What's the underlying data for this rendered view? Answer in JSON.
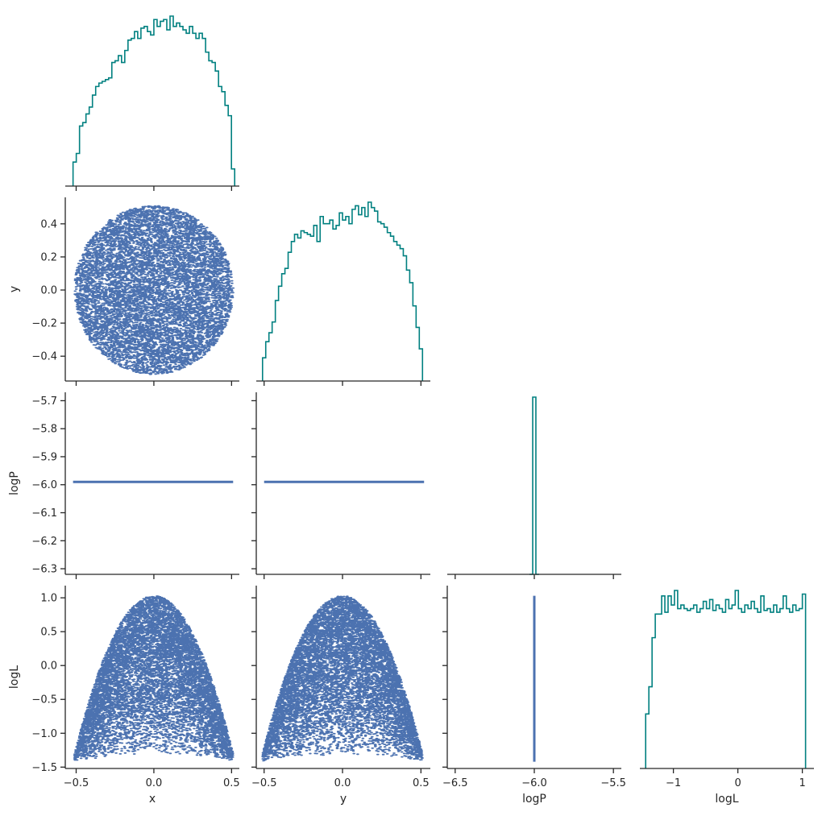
{
  "chart_data": {
    "type": "pairplot",
    "variables": [
      "x",
      "y",
      "logP",
      "logL"
    ],
    "corner": true,
    "colors": {
      "hist": "#008080",
      "scatter": "#4c72b0",
      "axis": "#262626"
    },
    "axes": {
      "x": {
        "label": "x",
        "ticks": [
          -0.5,
          0.0,
          0.5
        ],
        "tick_labels": [
          "-0.5",
          "0.0",
          "0.5"
        ],
        "range": [
          -0.57,
          0.55
        ]
      },
      "y": {
        "label": "y",
        "ticks": [
          -0.4,
          -0.2,
          0.0,
          0.2,
          0.4
        ],
        "tick_labels": [
          "-0.4",
          "-0.2",
          "0.0",
          "0.2",
          "0.4"
        ],
        "range": [
          -0.55,
          0.56
        ]
      },
      "y_col": {
        "label": "y",
        "ticks": [
          -0.5,
          0.0,
          0.5
        ],
        "tick_labels": [
          "-0.5",
          "0.0",
          "0.5"
        ],
        "range": [
          -0.55,
          0.56
        ]
      },
      "logP": {
        "label": "logP",
        "ticks": [
          -5.7,
          -5.8,
          -5.9,
          -6.0,
          -6.1,
          -6.2,
          -6.3
        ],
        "tick_labels": [
          "-5.7",
          "-5.8",
          "-5.9",
          "-6.0",
          "-6.1",
          "-6.2",
          "-6.3"
        ],
        "range": [
          -6.32,
          -5.67
        ]
      },
      "logP_col": {
        "label": "logP",
        "ticks": [
          -6.5,
          -6.0,
          -5.5
        ],
        "tick_labels": [
          "-6.5",
          "-6.0",
          "-5.5"
        ],
        "range": [
          -6.55,
          -5.45
        ]
      },
      "logL": {
        "label": "logL",
        "ticks": [
          -1.5,
          -1.0,
          -0.5,
          0.0,
          0.5,
          1.0
        ],
        "tick_labels": [
          "-1.5",
          "-1.0",
          "-0.5",
          "0.0",
          "0.5",
          "1.0"
        ],
        "range": [
          -1.52,
          1.18
        ]
      },
      "logL_col": {
        "label": "logL",
        "ticks": [
          -1,
          0,
          1
        ],
        "tick_labels": [
          "-1",
          "0",
          "1"
        ],
        "range": [
          -1.52,
          1.18
        ]
      }
    },
    "histograms": {
      "x": {
        "range": [
          -0.52,
          0.52
        ],
        "counts": [
          0.14,
          0.19,
          0.35,
          0.37,
          0.42,
          0.46,
          0.53,
          0.58,
          0.6,
          0.61,
          0.62,
          0.63,
          0.72,
          0.73,
          0.76,
          0.72,
          0.79,
          0.85,
          0.86,
          0.9,
          0.86,
          0.92,
          0.93,
          0.9,
          0.88,
          0.97,
          0.93,
          0.96,
          0.97,
          0.91,
          0.99,
          0.93,
          0.95,
          0.93,
          0.91,
          0.89,
          0.93,
          0.89,
          0.86,
          0.89,
          0.86,
          0.78,
          0.73,
          0.72,
          0.67,
          0.58,
          0.55,
          0.47,
          0.41,
          0.1
        ]
      },
      "y": {
        "range": [
          -0.51,
          0.51
        ],
        "counts": [
          0.13,
          0.22,
          0.27,
          0.33,
          0.45,
          0.53,
          0.6,
          0.63,
          0.72,
          0.78,
          0.82,
          0.8,
          0.84,
          0.83,
          0.82,
          0.81,
          0.87,
          0.78,
          0.92,
          0.88,
          0.88,
          0.9,
          0.85,
          0.87,
          0.94,
          0.9,
          0.92,
          0.88,
          0.96,
          0.98,
          0.93,
          0.97,
          0.92,
          1.0,
          0.97,
          0.95,
          0.89,
          0.88,
          0.86,
          0.83,
          0.81,
          0.78,
          0.76,
          0.74,
          0.7,
          0.62,
          0.55,
          0.42,
          0.3,
          0.18
        ]
      },
      "logP": {
        "range": [
          -6.03,
          -5.97
        ],
        "counts": [
          0.0,
          1.0,
          0.0
        ]
      },
      "logL": {
        "range": [
          -1.43,
          1.05
        ],
        "counts": [
          0.3,
          0.45,
          0.72,
          0.85,
          0.85,
          0.95,
          0.86,
          0.95,
          0.9,
          0.98,
          0.88,
          0.9,
          0.88,
          0.87,
          0.88,
          0.9,
          0.86,
          0.88,
          0.92,
          0.88,
          0.93,
          0.87,
          0.9,
          0.88,
          0.86,
          0.93,
          0.88,
          0.9,
          0.98,
          0.88,
          0.86,
          0.9,
          0.88,
          0.92,
          0.88,
          0.86,
          0.95,
          0.87,
          0.88,
          0.86,
          0.9,
          0.86,
          0.88,
          0.95,
          0.88,
          0.86,
          0.9,
          0.87,
          0.88,
          0.96
        ]
      }
    },
    "scatter_relations": {
      "x_vs_y": "uniform-disk",
      "x_vs_logP": "constant -5.99",
      "y_vs_logP": "constant -5.99",
      "logP_vs_logL": "constant logP -6.0",
      "x_vs_logL": "parabola peak 1.03 at 0",
      "y_vs_logL": "parabola peak 1.03 at 0"
    }
  }
}
